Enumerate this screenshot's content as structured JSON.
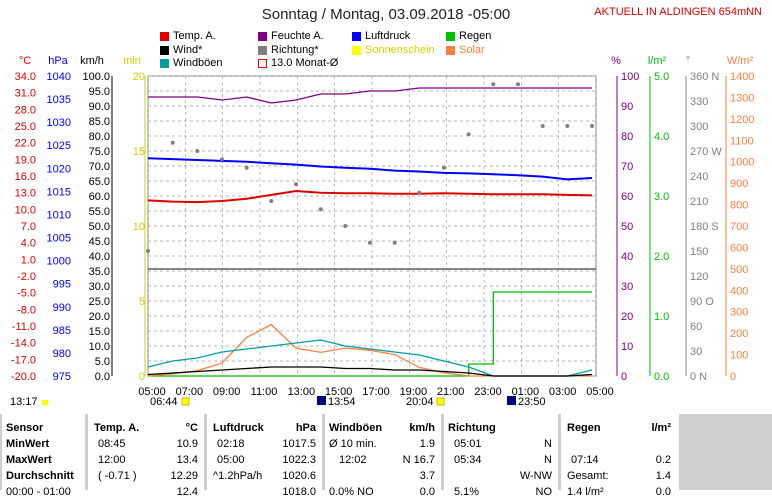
{
  "header": {
    "title": "Sonntag / Montag, 03.09.2018  -05:00",
    "live": "AKTUELL IN ALDINGEN 654mNN"
  },
  "legend": {
    "col1": [
      {
        "label": "Temp. A.",
        "color": "#e00000"
      },
      {
        "label": "Wind*",
        "color": "#000000"
      },
      {
        "label": "Windböen",
        "color": "#00a0a0"
      }
    ],
    "col2": [
      {
        "label": "Feuchte A.",
        "color": "#800080"
      },
      {
        "label": "Richtung*",
        "color": "#808080"
      },
      {
        "label": "13.0 Monat-Ø",
        "color": "#e00000",
        "outline": true
      }
    ],
    "col3": [
      {
        "label": "Luftdruck",
        "color": "#0000ff"
      },
      {
        "label": "Sonnenschein",
        "color": "#ffff00"
      }
    ],
    "col4": [
      {
        "label": "Regen",
        "color": "#00c000"
      },
      {
        "label": "Solar",
        "color": "#ff8040"
      }
    ]
  },
  "axes": {
    "celsius_label": "°C",
    "hpa_label": "hPa",
    "kmh_label": "km/h",
    "min_label": "min",
    "pct_label": "%",
    "lm2_label": "l/m²",
    "deg_label": "°",
    "wm2_label": "W/m²",
    "celsius": [
      "34.0",
      "31.0",
      "28.0",
      "25.0",
      "22.0",
      "19.0",
      "16.0",
      "13.0",
      "10.0",
      "7.0",
      "4.0",
      "1.0",
      "-2.0",
      "-5.0",
      "-8.0",
      "-11.0",
      "-14.0",
      "-17.0",
      "-20.0"
    ],
    "hpa": [
      "1040",
      "1035",
      "1030",
      "1025",
      "1020",
      "1015",
      "1010",
      "1005",
      "1000",
      "995",
      "990",
      "985",
      "980",
      "975"
    ],
    "kmh": [
      "100.0",
      "95.0",
      "90.0",
      "85.0",
      "80.0",
      "75.0",
      "70.0",
      "65.0",
      "60.0",
      "55.0",
      "50.0",
      "45.0",
      "40.0",
      "35.0",
      "30.0",
      "25.0",
      "20.0",
      "15.0",
      "10.0",
      "5.0",
      "0.0"
    ],
    "min": [
      "20",
      "15",
      "10",
      "5",
      "0"
    ],
    "pct": [
      "100",
      "90",
      "80",
      "70",
      "60",
      "50",
      "40",
      "30",
      "20",
      "10",
      "0"
    ],
    "lm2": [
      "5.0",
      "4.0",
      "3.0",
      "2.0",
      "1.0",
      "0.0"
    ],
    "deg": [
      "360 N",
      "330",
      "300",
      "270 W",
      "240",
      "210",
      "180 S",
      "150",
      "120",
      "90 O",
      "60",
      "30",
      "0 N"
    ],
    "wm2": [
      "1400",
      "1300",
      "1200",
      "1100",
      "1000",
      "900",
      "800",
      "700",
      "600",
      "500",
      "400",
      "300",
      "200",
      "100",
      "0"
    ],
    "time": [
      "05:00",
      "07:00",
      "09:00",
      "11:00",
      "13:00",
      "15:00",
      "17:00",
      "19:00",
      "21:00",
      "23:00",
      "01:00",
      "03:00",
      "05:00"
    ]
  },
  "markers": {
    "left_time": "13:17",
    "sunrise": "06:44",
    "noon": "13:54",
    "sunset": "20:04",
    "moon": "23:50"
  },
  "chart_data": {
    "type": "line",
    "x_start": "05:00",
    "x_end": "05:00 (+1 day)",
    "series": [
      {
        "name": "Temp. A.",
        "unit": "°C",
        "values": [
          11.6,
          11.4,
          11.3,
          11.5,
          11.9,
          12.6,
          13.3,
          13.0,
          12.9,
          12.9,
          12.8,
          12.8,
          12.9,
          12.8,
          12.7,
          12.7,
          12.7,
          12.6,
          12.5
        ]
      },
      {
        "name": "Feuchte A.",
        "unit": "%",
        "values": [
          93,
          93,
          93,
          92,
          93,
          91,
          92,
          94,
          94,
          95,
          95,
          96,
          96,
          96,
          96,
          96,
          96,
          96,
          96
        ]
      },
      {
        "name": "Luftdruck",
        "unit": "hPa",
        "values": [
          1022.2,
          1022.0,
          1021.8,
          1021.6,
          1021.4,
          1021.1,
          1020.8,
          1020.4,
          1020.1,
          1019.9,
          1019.5,
          1019.3,
          1019.0,
          1018.9,
          1018.7,
          1018.5,
          1018.2,
          1017.6,
          1017.9
        ]
      },
      {
        "name": "Regen",
        "unit": "l/m²",
        "values": [
          0,
          0,
          0,
          0,
          0,
          0,
          0,
          0,
          0,
          0,
          0,
          0,
          0,
          0.2,
          1.4,
          1.4,
          1.4,
          1.4,
          1.4
        ]
      },
      {
        "name": "Solar",
        "unit": "W/m²",
        "values": [
          0,
          10,
          25,
          60,
          180,
          240,
          130,
          110,
          130,
          120,
          100,
          40,
          15,
          0,
          0,
          0,
          0,
          0,
          0
        ]
      },
      {
        "name": "Windböen",
        "unit": "km/h",
        "values": [
          3,
          5,
          6,
          8,
          9,
          10,
          11,
          12,
          10,
          9,
          8,
          7,
          5,
          3,
          0,
          0,
          0,
          0,
          2
        ]
      },
      {
        "name": "Wind*",
        "unit": "km/h",
        "values": [
          0.5,
          1,
          1.5,
          2,
          2.5,
          3,
          3,
          3,
          2.5,
          2.5,
          2,
          2,
          1.5,
          1,
          0,
          0,
          0,
          0,
          0.5
        ]
      },
      {
        "name": "Richtung*",
        "unit": "°",
        "values": [
          150,
          280,
          270,
          260,
          250,
          210,
          230,
          200,
          180,
          160,
          160,
          220,
          250,
          290,
          350,
          350,
          300,
          300,
          300
        ]
      }
    ]
  },
  "table": {
    "sensor": {
      "head": "Sensor",
      "rows": [
        "MinWert",
        "MaxWert",
        "Durchschnitt",
        "00:00 - 01:00"
      ]
    },
    "temp": {
      "head": "Temp. A.",
      "unit": "°C",
      "rows": [
        [
          "08:45",
          "10.9"
        ],
        [
          "12:00",
          "13.4"
        ],
        [
          "( -0.71 )",
          "12.29"
        ],
        [
          "",
          "12.4"
        ]
      ]
    },
    "pressure": {
      "head": "Luftdruck",
      "unit": "hPa",
      "rows": [
        [
          "02:18",
          "1017.5"
        ],
        [
          "05:00",
          "1022.3"
        ],
        [
          "^1.2hPa/h",
          "1020.6"
        ],
        [
          "",
          "1018.0"
        ]
      ]
    },
    "gust": {
      "head": "Windböen",
      "unit": "km/h",
      "rows": [
        [
          "Ø 10 min.",
          "1.9"
        ],
        [
          "12:02",
          "N 16.7"
        ],
        [
          "",
          "3.7"
        ],
        [
          "0.0% NO",
          "0.0"
        ]
      ]
    },
    "dir": {
      "head": "Richtung",
      "rows": [
        [
          "05:01",
          "N"
        ],
        [
          "05:34",
          "N"
        ],
        [
          "",
          "W-NW"
        ],
        [
          "5.1%",
          "NO"
        ]
      ]
    },
    "rain": {
      "head": "Regen",
      "unit": "l/m²",
      "rows": [
        [
          "",
          ""
        ],
        [
          "07:14",
          "0.2"
        ],
        [
          "Gesamt:",
          "1.4"
        ],
        [
          "1.4 l/m²",
          "0.0"
        ]
      ]
    }
  }
}
